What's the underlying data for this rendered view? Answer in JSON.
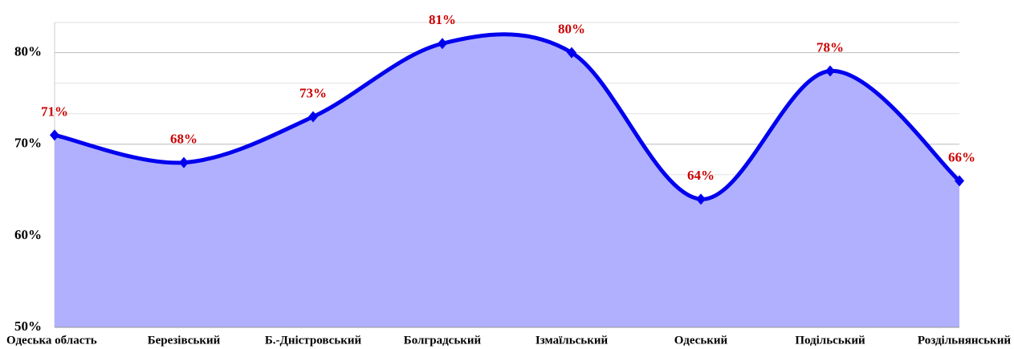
{
  "chart_data": {
    "type": "area",
    "categories": [
      "Одеська область",
      "Березівський",
      "Б.-Дністровський",
      "Болградський",
      "Ізмаїльський",
      "Одеський",
      "Подільський",
      "Роздільнянський"
    ],
    "values": [
      71,
      68,
      73,
      81,
      80,
      64,
      78,
      66
    ],
    "value_labels": [
      "71%",
      "68%",
      "73%",
      "81%",
      "80%",
      "64%",
      "78%",
      "66%"
    ],
    "color": "#0000ee",
    "fill": "#b0b0ff",
    "ylim": [
      50,
      83.3
    ],
    "yticks": [
      {
        "value": 50,
        "label": "50%"
      },
      {
        "value": 60,
        "label": "60%"
      },
      {
        "value": 70,
        "label": "70%"
      },
      {
        "value": 80,
        "label": "80%"
      }
    ],
    "grid": true
  }
}
